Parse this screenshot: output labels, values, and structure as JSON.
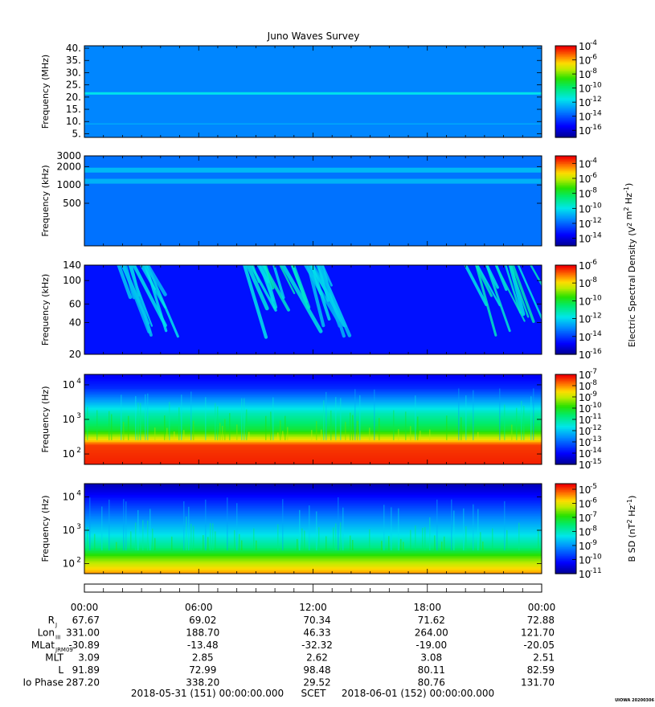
{
  "title": "Juno Waves Survey",
  "watermark": "UIOWA 20200306",
  "chart_data": [
    {
      "type": "heatmap",
      "ylabel": "Frequency (MHz)",
      "y_scale": "linear",
      "ylim": [
        3.5,
        41
      ],
      "yticks": [
        {
          "v": 40,
          "label": "40."
        },
        {
          "v": 35,
          "label": "35."
        },
        {
          "v": 30,
          "label": "30."
        },
        {
          "v": 25,
          "label": "25."
        },
        {
          "v": 20,
          "label": "20."
        },
        {
          "v": 15,
          "label": "15."
        },
        {
          "v": 10,
          "label": "10."
        },
        {
          "v": 5,
          "label": "5."
        }
      ],
      "colorbar": {
        "scale": "log",
        "range_exp": [
          -17,
          -4
        ],
        "ticks": [
          {
            "e": -4,
            "label": "-4"
          },
          {
            "e": -6,
            "label": "-6"
          },
          {
            "e": -8,
            "label": "-8"
          },
          {
            "e": -10,
            "label": "-10"
          },
          {
            "e": -12,
            "label": "-12"
          },
          {
            "e": -14,
            "label": "-14"
          },
          {
            "e": -16,
            "label": "-16"
          }
        ]
      },
      "background_level": -13.2,
      "bands": [
        {
          "y": 21.5,
          "width": 1.0,
          "level": -11.6
        },
        {
          "y": 9.0,
          "width": 0.5,
          "level": -12.6
        }
      ]
    },
    {
      "type": "heatmap",
      "ylabel": "Frequency (kHz)",
      "y_scale": "log",
      "ylim": [
        100,
        3000
      ],
      "yticks": [
        {
          "v": 3000,
          "label": "3000"
        },
        {
          "v": 2000,
          "label": "2000"
        },
        {
          "v": 1000,
          "label": "1000"
        },
        {
          "v": 500,
          "label": "500"
        }
      ],
      "colorbar": {
        "scale": "log",
        "range_exp": [
          -15,
          -3
        ],
        "label": "Electric Spectral Density (V",
        "ticks": [
          {
            "e": -4,
            "label": "-4"
          },
          {
            "e": -6,
            "label": "-6"
          },
          {
            "e": -8,
            "label": "-8"
          },
          {
            "e": -10,
            "label": "-10"
          },
          {
            "e": -12,
            "label": "-12"
          },
          {
            "e": -14,
            "label": "-14"
          }
        ]
      },
      "background_level": -11.8,
      "bands": [
        {
          "y": 1750,
          "width": 0.04,
          "level": -10.7
        },
        {
          "y": 1150,
          "width": 0.04,
          "level": -10.8
        }
      ]
    },
    {
      "type": "heatmap",
      "ylabel": "Frequency (kHz)",
      "y_scale": "log",
      "ylim": [
        20,
        140
      ],
      "yticks": [
        {
          "v": 140,
          "label": "140"
        },
        {
          "v": 100,
          "label": "100"
        },
        {
          "v": 60,
          "label": "60"
        },
        {
          "v": 40,
          "label": "40"
        },
        {
          "v": 20,
          "label": "20"
        }
      ],
      "colorbar": {
        "scale": "log",
        "range_exp": [
          -16,
          -6
        ],
        "ticks": [
          {
            "e": -6,
            "label": "-6"
          },
          {
            "e": -8,
            "label": "-8"
          },
          {
            "e": -10,
            "label": "-10"
          },
          {
            "e": -12,
            "label": "-12"
          },
          {
            "e": -14,
            "label": "-14"
          },
          {
            "e": -16,
            "label": "-16"
          }
        ]
      },
      "background_level": -14.6,
      "bursts": [
        {
          "t0": 1.8,
          "t1": 3.4,
          "level": -12.4
        },
        {
          "t0": 8.4,
          "t1": 11.0,
          "level": -12.0
        },
        {
          "t0": 11.6,
          "t1": 12.6,
          "level": -12.6
        },
        {
          "t0": 20.0,
          "t1": 23.6,
          "level": -11.9
        }
      ]
    },
    {
      "type": "heatmap",
      "ylabel": "Frequency (Hz)",
      "y_scale": "log",
      "ylim": [
        50,
        20000
      ],
      "yticks": [
        {
          "v": 10000,
          "label": "10",
          "exp": "4"
        },
        {
          "v": 1000,
          "label": "10",
          "exp": "3"
        },
        {
          "v": 100,
          "label": "10",
          "exp": "2"
        }
      ],
      "colorbar": {
        "scale": "log",
        "range_exp": [
          -15,
          -7
        ],
        "ticks": [
          {
            "e": -7,
            "label": "-7"
          },
          {
            "e": -8,
            "label": "-8"
          },
          {
            "e": -9,
            "label": "-9"
          },
          {
            "e": -10,
            "label": "-10"
          },
          {
            "e": -11,
            "label": "-11"
          },
          {
            "e": -12,
            "label": "-12"
          },
          {
            "e": -13,
            "label": "-13"
          },
          {
            "e": -14,
            "label": "-14"
          },
          {
            "e": -15,
            "label": "-15"
          }
        ]
      },
      "spectrum_levels": [
        {
          "f": 50,
          "level": -7.2
        },
        {
          "f": 180,
          "level": -7.4
        },
        {
          "f": 260,
          "level": -8.6
        },
        {
          "f": 500,
          "level": -10.2
        },
        {
          "f": 1500,
          "level": -11.2
        },
        {
          "f": 3000,
          "level": -12.2
        },
        {
          "f": 8000,
          "level": -13.6
        },
        {
          "f": 20000,
          "level": -14.2
        }
      ]
    },
    {
      "type": "heatmap",
      "ylabel": "Frequency (Hz)",
      "y_scale": "log",
      "ylim": [
        50,
        25000
      ],
      "yticks": [
        {
          "v": 10000,
          "label": "10",
          "exp": "4"
        },
        {
          "v": 1000,
          "label": "10",
          "exp": "3"
        },
        {
          "v": 100,
          "label": "10",
          "exp": "2"
        }
      ],
      "colorbar": {
        "scale": "log",
        "range_exp": [
          -11,
          -4.6
        ],
        "label": "B SD (nT",
        "ticks": [
          {
            "e": -5,
            "label": "-5"
          },
          {
            "e": -6,
            "label": "-6"
          },
          {
            "e": -7,
            "label": "-7"
          },
          {
            "e": -8,
            "label": "-8"
          },
          {
            "e": -9,
            "label": "-9"
          },
          {
            "e": -10,
            "label": "-10"
          },
          {
            "e": -11,
            "label": "-11"
          }
        ]
      },
      "spectrum_levels": [
        {
          "f": 50,
          "level": -5.4
        },
        {
          "f": 150,
          "level": -6.6
        },
        {
          "f": 300,
          "level": -7.6
        },
        {
          "f": 800,
          "level": -8.4
        },
        {
          "f": 2000,
          "level": -9.0
        },
        {
          "f": 6000,
          "level": -9.8
        },
        {
          "f": 25000,
          "level": -10.8
        }
      ]
    }
  ],
  "x_axis": {
    "range_hours": [
      0,
      24
    ],
    "ticks": [
      {
        "t": 0,
        "label": "00:00"
      },
      {
        "t": 6,
        "label": "06:00"
      },
      {
        "t": 12,
        "label": "12:00"
      },
      {
        "t": 18,
        "label": "18:00"
      },
      {
        "t": 24,
        "label": "00:00"
      }
    ]
  },
  "ephemeris": [
    {
      "label": "R",
      "sub": "J",
      "values": [
        "67.67",
        "69.02",
        "70.34",
        "71.62",
        "72.88"
      ]
    },
    {
      "label": "Lon",
      "sub": "III",
      "values": [
        "331.00",
        "188.70",
        "46.33",
        "264.00",
        "121.70"
      ]
    },
    {
      "label": "MLat",
      "sub": "JRM09",
      "values": [
        "-30.89",
        "-13.48",
        "-32.32",
        "-19.00",
        "-20.05"
      ]
    },
    {
      "label": "MLT",
      "sub": "",
      "values": [
        "3.09",
        "2.85",
        "2.62",
        "3.08",
        "2.51"
      ]
    },
    {
      "label": "L",
      "sub": "",
      "values": [
        "91.89",
        "72.99",
        "98.48",
        "80.11",
        "82.59"
      ]
    },
    {
      "label": "Io Phase",
      "sub": "",
      "values": [
        "287.20",
        "338.20",
        "29.52",
        "80.76",
        "131.70"
      ]
    }
  ],
  "footer": {
    "start": "2018-05-31 (151) 00:00:00.000",
    "mid": "SCET",
    "end": "2018-06-01 (152) 00:00:00.000"
  }
}
